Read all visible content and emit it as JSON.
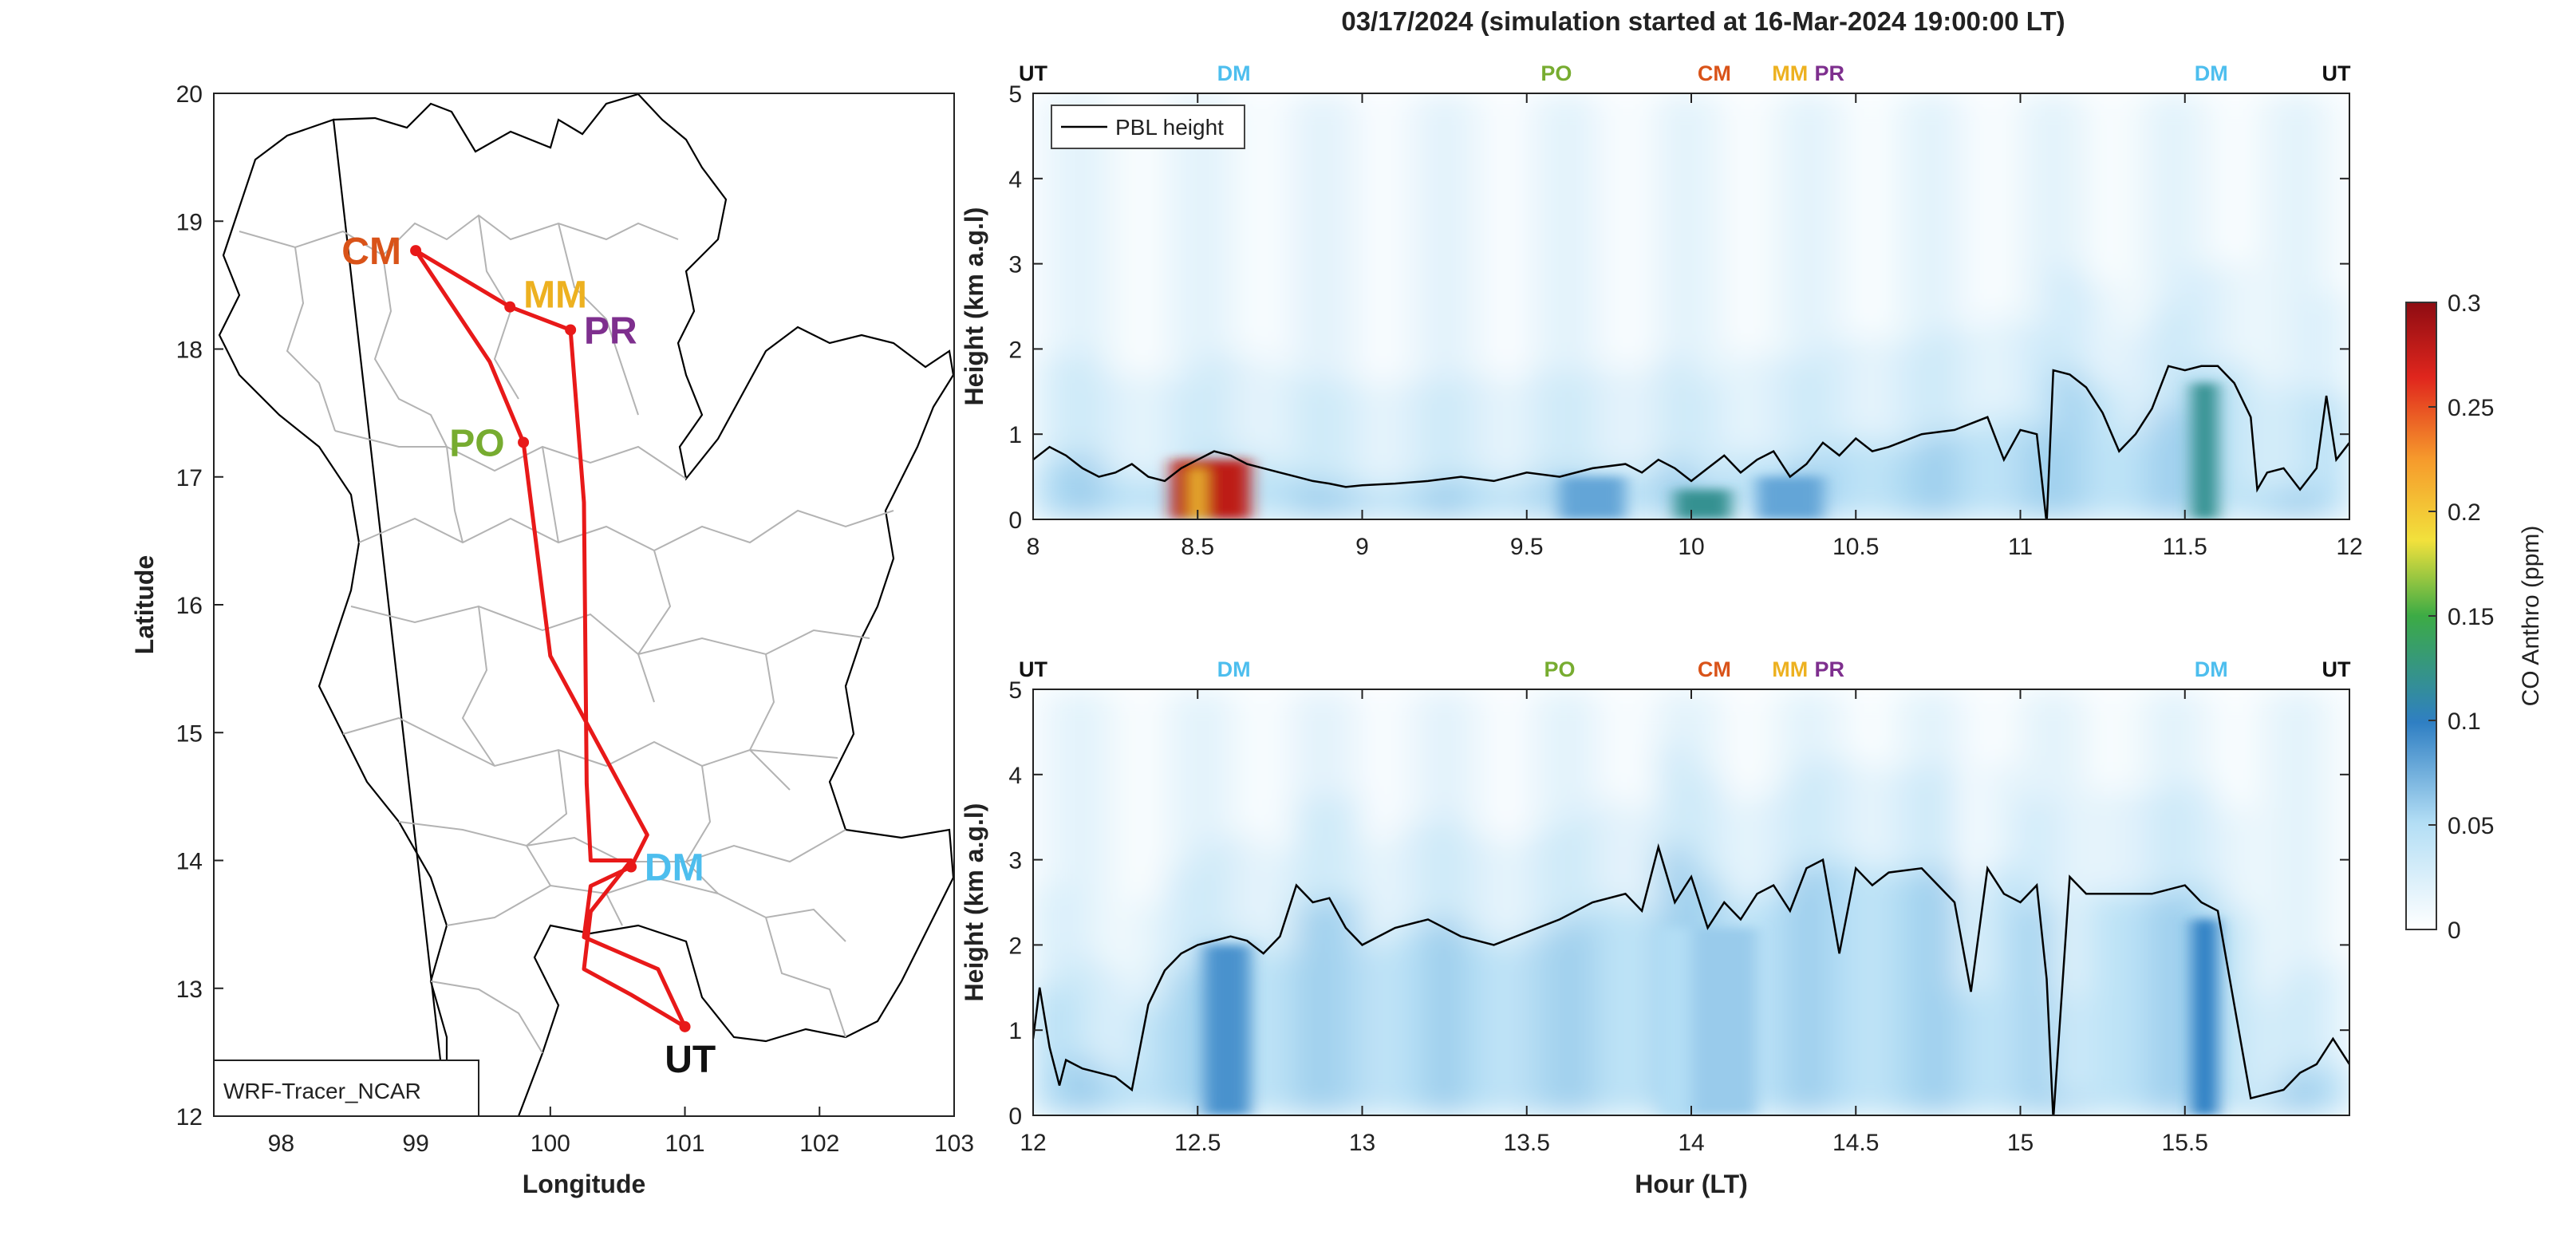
{
  "figure_title": "03/17/2024 (simulation started at 16-Mar-2024 19:00:00 LT)",
  "colors": {
    "CM": "#d95319",
    "MM": "#edb120",
    "PR": "#7e2f8e",
    "PO": "#77ac30",
    "DM": "#4dbeee",
    "UT": "#111111",
    "route": "#e81919",
    "pbl": "#000000"
  },
  "colormap": {
    "label": "CO Anthro (ppm)",
    "ticks": [
      0,
      0.05,
      0.1,
      0.15,
      0.2,
      0.25,
      0.3
    ],
    "tick_labels": [
      "0",
      "0.05",
      "0.1",
      "0.15",
      "0.2",
      "0.25",
      "0.3"
    ],
    "range": [
      0,
      0.3
    ]
  },
  "chart_data": [
    {
      "type": "line",
      "name": "map",
      "xlabel": "Longitude",
      "ylabel": "Latitude",
      "xlim": [
        97.5,
        103
      ],
      "ylim": [
        12,
        20
      ],
      "xticks": [
        98,
        99,
        100,
        101,
        102,
        103
      ],
      "yticks": [
        12,
        13,
        14,
        15,
        16,
        17,
        18,
        19,
        20
      ],
      "legend_text": "WRF-Tracer_NCAR",
      "route": [
        [
          99.0,
          18.77
        ],
        [
          99.7,
          18.33
        ],
        [
          100.15,
          18.15
        ],
        [
          100.25,
          16.8
        ],
        [
          100.27,
          14.6
        ],
        [
          100.3,
          14.0
        ],
        [
          100.6,
          14.0
        ],
        [
          100.3,
          13.6
        ],
        [
          100.25,
          13.15
        ],
        [
          100.6,
          12.95
        ],
        [
          101.0,
          12.7
        ],
        [
          100.8,
          13.15
        ],
        [
          100.25,
          13.4
        ],
        [
          100.3,
          13.8
        ],
        [
          100.6,
          13.95
        ],
        [
          100.72,
          14.2
        ],
        [
          100.0,
          15.6
        ],
        [
          99.8,
          17.27
        ],
        [
          99.55,
          17.9
        ],
        [
          99.0,
          18.77
        ]
      ],
      "stations": [
        {
          "code": "CM",
          "lon": 99.0,
          "lat": 18.77,
          "dx": -0.55,
          "dy": 0.0
        },
        {
          "code": "MM",
          "lon": 99.7,
          "lat": 18.33,
          "dx": 0.1,
          "dy": 0.1
        },
        {
          "code": "PR",
          "lon": 100.15,
          "lat": 18.15,
          "dx": 0.1,
          "dy": 0.0
        },
        {
          "code": "PO",
          "lon": 99.8,
          "lat": 17.27,
          "dx": -0.55,
          "dy": -0.0
        },
        {
          "code": "DM",
          "lon": 100.6,
          "lat": 13.95,
          "dx": 0.1,
          "dy": 0.0
        },
        {
          "code": "UT",
          "lon": 101.0,
          "lat": 12.7,
          "dx": -0.15,
          "dy": -0.25
        }
      ]
    },
    {
      "type": "heatmap",
      "name": "top",
      "xlabel": "",
      "ylabel": "Height (km a.g.l)",
      "xlim": [
        8,
        12
      ],
      "ylim": [
        0,
        5
      ],
      "xticks": [
        8,
        8.5,
        9,
        9.5,
        10,
        10.5,
        11,
        11.5,
        12
      ],
      "xtick_labels": [
        "8",
        "8.5",
        "9",
        "9.5",
        "10",
        "10.5",
        "11",
        "11.5",
        "12"
      ],
      "yticks": [
        0,
        1,
        2,
        3,
        4,
        5
      ],
      "legend": "PBL height",
      "top_labels": [
        {
          "code": "UT",
          "x": 8.0
        },
        {
          "code": "DM",
          "x": 8.61
        },
        {
          "code": "PO",
          "x": 9.59
        },
        {
          "code": "CM",
          "x": 10.07
        },
        {
          "code": "MM",
          "x": 10.3
        },
        {
          "code": "PR",
          "x": 10.42
        },
        {
          "code": "DM",
          "x": 11.58
        },
        {
          "code": "UT",
          "x": 11.96
        }
      ],
      "plumes": [
        {
          "x0": 8.42,
          "x1": 8.66,
          "h": 0.7,
          "v": 0.28
        },
        {
          "x0": 8.48,
          "x1": 8.52,
          "h": 0.6,
          "v": 0.2
        },
        {
          "x0": 9.95,
          "x1": 10.12,
          "h": 0.35,
          "v": 0.12
        },
        {
          "x0": 11.52,
          "x1": 11.6,
          "h": 1.6,
          "v": 0.12
        },
        {
          "x0": 9.6,
          "x1": 9.8,
          "h": 0.5,
          "v": 0.08
        },
        {
          "x0": 10.2,
          "x1": 10.4,
          "h": 0.5,
          "v": 0.08
        }
      ],
      "pbl_x": [
        8.0,
        8.05,
        8.1,
        8.15,
        8.2,
        8.25,
        8.3,
        8.35,
        8.4,
        8.45,
        8.5,
        8.55,
        8.6,
        8.65,
        8.7,
        8.75,
        8.8,
        8.85,
        8.9,
        8.95,
        9.0,
        9.1,
        9.2,
        9.3,
        9.4,
        9.5,
        9.6,
        9.7,
        9.8,
        9.85,
        9.9,
        9.95,
        10.0,
        10.05,
        10.1,
        10.15,
        10.2,
        10.25,
        10.3,
        10.35,
        10.4,
        10.45,
        10.5,
        10.55,
        10.6,
        10.7,
        10.8,
        10.9,
        10.95,
        11.0,
        11.05,
        11.08,
        11.1,
        11.15,
        11.2,
        11.25,
        11.3,
        11.35,
        11.4,
        11.45,
        11.5,
        11.55,
        11.6,
        11.65,
        11.7,
        11.72,
        11.75,
        11.8,
        11.85,
        11.9,
        11.93,
        11.96,
        12.0
      ],
      "pbl_y": [
        0.7,
        0.85,
        0.75,
        0.6,
        0.5,
        0.55,
        0.65,
        0.5,
        0.45,
        0.6,
        0.7,
        0.8,
        0.75,
        0.65,
        0.6,
        0.55,
        0.5,
        0.45,
        0.42,
        0.38,
        0.4,
        0.42,
        0.45,
        0.5,
        0.45,
        0.55,
        0.5,
        0.6,
        0.65,
        0.55,
        0.7,
        0.6,
        0.45,
        0.6,
        0.75,
        0.55,
        0.7,
        0.8,
        0.5,
        0.65,
        0.9,
        0.75,
        0.95,
        0.8,
        0.85,
        1.0,
        1.05,
        1.2,
        0.7,
        1.05,
        1.0,
        -0.05,
        1.75,
        1.7,
        1.55,
        1.25,
        0.8,
        1.0,
        1.3,
        1.8,
        1.75,
        1.8,
        1.8,
        1.6,
        1.2,
        0.35,
        0.55,
        0.6,
        0.35,
        0.6,
        1.45,
        0.7,
        0.9
      ]
    },
    {
      "type": "heatmap",
      "name": "bottom",
      "xlabel": "Hour (LT)",
      "ylabel": "Height (km a.g.l)",
      "xlim": [
        12,
        16
      ],
      "ylim": [
        0,
        5
      ],
      "xticks": [
        12,
        12.5,
        13,
        13.5,
        14,
        14.5,
        15,
        15.5
      ],
      "xtick_labels": [
        "12",
        "12.5",
        "13",
        "13.5",
        "14",
        "14.5",
        "15",
        "15.5"
      ],
      "yticks": [
        0,
        1,
        2,
        3,
        4,
        5
      ],
      "top_labels": [
        {
          "code": "UT",
          "x": 12.0
        },
        {
          "code": "DM",
          "x": 12.61
        },
        {
          "code": "PO",
          "x": 13.6
        },
        {
          "code": "CM",
          "x": 14.07
        },
        {
          "code": "MM",
          "x": 14.3
        },
        {
          "code": "PR",
          "x": 14.42
        },
        {
          "code": "DM",
          "x": 15.58
        },
        {
          "code": "UT",
          "x": 15.96
        }
      ],
      "plumes": [
        {
          "x0": 12.52,
          "x1": 12.66,
          "h": 2.0,
          "v": 0.09
        },
        {
          "x0": 15.52,
          "x1": 15.6,
          "h": 2.3,
          "v": 0.1
        },
        {
          "x0": 14.0,
          "x1": 14.2,
          "h": 2.2,
          "v": 0.06
        },
        {
          "x0": 13.9,
          "x1": 14.0,
          "h": 2.2,
          "v": 0.05
        }
      ],
      "pbl_x": [
        12.0,
        12.02,
        12.05,
        12.08,
        12.1,
        12.15,
        12.2,
        12.25,
        12.3,
        12.35,
        12.4,
        12.45,
        12.5,
        12.55,
        12.6,
        12.65,
        12.7,
        12.75,
        12.8,
        12.85,
        12.9,
        12.95,
        13.0,
        13.1,
        13.2,
        13.3,
        13.4,
        13.5,
        13.6,
        13.7,
        13.8,
        13.85,
        13.9,
        13.95,
        14.0,
        14.05,
        14.1,
        14.15,
        14.2,
        14.25,
        14.3,
        14.35,
        14.4,
        14.45,
        14.5,
        14.55,
        14.6,
        14.7,
        14.8,
        14.85,
        14.9,
        14.95,
        15.0,
        15.05,
        15.08,
        15.1,
        15.15,
        15.2,
        15.3,
        15.4,
        15.5,
        15.55,
        15.6,
        15.65,
        15.7,
        15.8,
        15.85,
        15.9,
        15.95,
        16.0
      ],
      "pbl_y": [
        0.9,
        1.5,
        0.8,
        0.35,
        0.65,
        0.55,
        0.5,
        0.45,
        0.3,
        1.3,
        1.7,
        1.9,
        2.0,
        2.05,
        2.1,
        2.05,
        1.9,
        2.1,
        2.7,
        2.5,
        2.55,
        2.2,
        2.0,
        2.2,
        2.3,
        2.1,
        2.0,
        2.15,
        2.3,
        2.5,
        2.6,
        2.4,
        3.15,
        2.5,
        2.8,
        2.2,
        2.5,
        2.3,
        2.6,
        2.7,
        2.4,
        2.9,
        3.0,
        1.9,
        2.9,
        2.7,
        2.85,
        2.9,
        2.5,
        1.45,
        2.9,
        2.6,
        2.5,
        2.7,
        1.6,
        -0.05,
        2.8,
        2.6,
        2.6,
        2.6,
        2.7,
        2.5,
        2.4,
        1.3,
        0.2,
        0.3,
        0.5,
        0.6,
        0.9,
        0.6
      ]
    }
  ]
}
